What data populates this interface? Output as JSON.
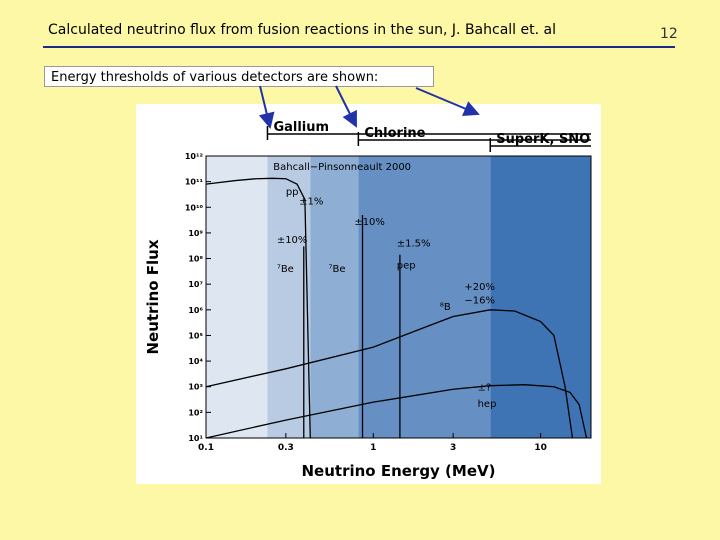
{
  "slide": {
    "title": "Calculated neutrino flux from fusion reactions in the sun, J. Bahcall et. al",
    "page_number": "12",
    "callout": "Energy thresholds of various detectors are shown:"
  },
  "figure": {
    "header_labels": [
      "Gallium",
      "Chlorine",
      "SuperK, SNO"
    ],
    "subtitle": "Bahcall−Pinsonneault 2000",
    "region_colors": [
      "#dde6f1",
      "#b8cbe2",
      "#8eaed3",
      "#6690c4",
      "#3f74b4"
    ],
    "thresholds_mev": [
      0.233,
      0.814,
      5.0
    ],
    "annotations": [
      {
        "id": "pp",
        "text": "pp",
        "x": 0.3,
        "y": 30000000000.0
      },
      {
        "id": "pp-unc",
        "text": "±1%",
        "x": 0.36,
        "y": 13000000000.0
      },
      {
        "id": "be7-unc",
        "text": "±10%",
        "x": 0.265,
        "y": 400000000.0
      },
      {
        "id": "be7-low",
        "text": "⁷Be",
        "x": 0.265,
        "y": 30000000.0
      },
      {
        "id": "be7-high",
        "text": "⁷Be",
        "x": 0.54,
        "y": 30000000.0
      },
      {
        "id": "be7-high-unc",
        "text": "±10%",
        "x": 0.77,
        "y": 2000000000.0
      },
      {
        "id": "pep-unc",
        "text": "±1.5%",
        "x": 1.38,
        "y": 300000000.0
      },
      {
        "id": "pep",
        "text": "pep",
        "x": 1.38,
        "y": 40000000.0
      },
      {
        "id": "b8-unc-plus",
        "text": "+20%",
        "x": 3.5,
        "y": 6000000.0
      },
      {
        "id": "b8-unc-minus",
        "text": "−16%",
        "x": 3.5,
        "y": 1800000.0
      },
      {
        "id": "b8",
        "text": "⁸B",
        "x": 2.5,
        "y": 1000000.0
      },
      {
        "id": "hep-unc",
        "text": "±?",
        "x": 4.2,
        "y": 700.0
      },
      {
        "id": "hep",
        "text": "hep",
        "x": 4.2,
        "y": 160.0
      }
    ]
  },
  "chart_data": {
    "type": "line",
    "xlabel": "Neutrino Energy (MeV)",
    "ylabel": "Neutrino Flux",
    "x_scale": "log",
    "y_scale": "log",
    "xlim": [
      0.1,
      20
    ],
    "ylim": [
      10,
      1000000000000.0
    ],
    "x_ticks": [
      0.1,
      0.3,
      1,
      3,
      10
    ],
    "x_tick_labels": [
      "0.1",
      "0.3",
      "1",
      "3",
      "10"
    ],
    "y_ticks": [
      10,
      100,
      1000,
      10000,
      100000,
      1000000,
      10000000,
      100000000,
      1000000000,
      10000000000,
      100000000000,
      1000000000000
    ],
    "y_tick_labels": [
      "10¹",
      "10²",
      "10³",
      "10⁴",
      "10⁵",
      "10⁶",
      "10⁷",
      "10⁸",
      "10⁹",
      "10¹⁰",
      "10¹¹",
      "10¹²"
    ],
    "series": [
      {
        "name": "pp",
        "x": [
          0.1,
          0.15,
          0.2,
          0.25,
          0.3,
          0.35,
          0.39,
          0.42
        ],
        "y": [
          80000000000.0,
          110000000000.0,
          130000000000.0,
          135000000000.0,
          130000000000.0,
          80000000000.0,
          20000000000.0,
          10
        ]
      },
      {
        "name": "7Be",
        "x": [
          0.384,
          0.384
        ],
        "y": [
          10,
          300000000.0
        ]
      },
      {
        "name": "7Be",
        "x": [
          0.862,
          0.862
        ],
        "y": [
          10,
          5000000000.0
        ]
      },
      {
        "name": "pep",
        "x": [
          1.442,
          1.442
        ],
        "y": [
          10,
          140000000.0
        ]
      },
      {
        "name": "8B",
        "x": [
          0.1,
          0.3,
          1,
          2,
          3,
          5,
          7,
          10,
          12,
          14,
          15.5
        ],
        "y": [
          1000,
          5000,
          35000,
          200000,
          550000,
          1000000,
          900000,
          350000,
          100000,
          1000,
          10
        ]
      },
      {
        "name": "hep",
        "x": [
          0.1,
          0.3,
          1,
          3,
          5,
          8,
          12,
          15,
          17,
          18.8
        ],
        "y": [
          10,
          50,
          250,
          800,
          1100,
          1200,
          1000,
          600,
          200,
          10
        ]
      }
    ]
  }
}
